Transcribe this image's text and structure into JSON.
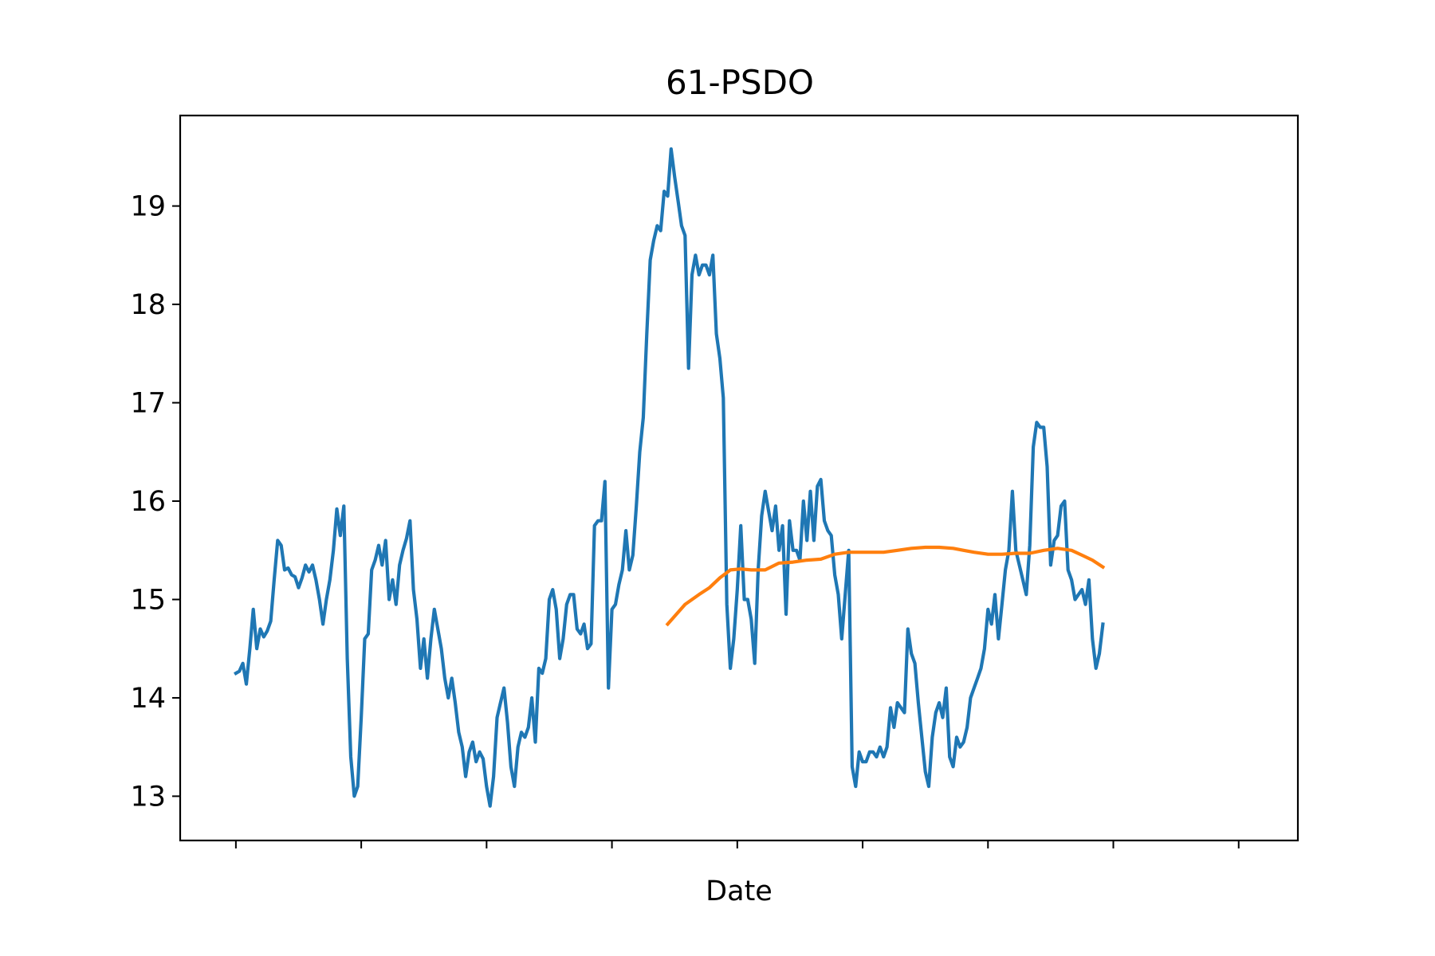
{
  "chart_data": {
    "type": "line",
    "title": "61-PSDO",
    "xlabel": "Date",
    "ylabel": "",
    "ylim": [
      12.55,
      19.92
    ],
    "xlim": [
      -16,
      305
    ],
    "yticks": [
      13,
      14,
      15,
      16,
      17,
      18,
      19
    ],
    "x_tick_count": 9,
    "x_tick_step": 36,
    "grid": false,
    "legend": "none",
    "series": [
      {
        "color": "#1f77b4",
        "anchors": [
          [
            0,
            14.25
          ],
          [
            1,
            14.27
          ],
          [
            2,
            14.35
          ],
          [
            3,
            14.14
          ],
          [
            4,
            14.5
          ],
          [
            5,
            14.9
          ],
          [
            6,
            14.5
          ],
          [
            7,
            14.7
          ],
          [
            8,
            14.62
          ],
          [
            9,
            14.68
          ],
          [
            10,
            14.78
          ],
          [
            11,
            15.2
          ],
          [
            12,
            15.6
          ],
          [
            13,
            15.55
          ],
          [
            14,
            15.3
          ],
          [
            15,
            15.32
          ],
          [
            16,
            15.25
          ],
          [
            17,
            15.23
          ],
          [
            18,
            15.12
          ],
          [
            19,
            15.22
          ],
          [
            20,
            15.35
          ],
          [
            21,
            15.28
          ],
          [
            22,
            15.35
          ],
          [
            23,
            15.2
          ],
          [
            24,
            15.0
          ],
          [
            25,
            14.75
          ],
          [
            26,
            15.0
          ],
          [
            27,
            15.2
          ],
          [
            28,
            15.5
          ],
          [
            29,
            15.92
          ],
          [
            30,
            15.65
          ],
          [
            31,
            15.95
          ],
          [
            32,
            14.4
          ],
          [
            33,
            13.4
          ],
          [
            34,
            13.0
          ],
          [
            35,
            13.1
          ],
          [
            36,
            13.8
          ],
          [
            37,
            14.6
          ],
          [
            38,
            14.65
          ],
          [
            39,
            15.3
          ],
          [
            40,
            15.4
          ],
          [
            41,
            15.55
          ],
          [
            42,
            15.35
          ],
          [
            43,
            15.6
          ],
          [
            44,
            15.0
          ],
          [
            45,
            15.2
          ],
          [
            46,
            14.95
          ],
          [
            47,
            15.35
          ],
          [
            48,
            15.5
          ],
          [
            49,
            15.62
          ],
          [
            50,
            15.8
          ],
          [
            51,
            15.1
          ],
          [
            52,
            14.8
          ],
          [
            53,
            14.3
          ],
          [
            54,
            14.6
          ],
          [
            55,
            14.2
          ],
          [
            56,
            14.6
          ],
          [
            57,
            14.9
          ],
          [
            58,
            14.7
          ],
          [
            59,
            14.5
          ],
          [
            60,
            14.2
          ],
          [
            61,
            14.0
          ],
          [
            62,
            14.2
          ],
          [
            63,
            13.95
          ],
          [
            64,
            13.65
          ],
          [
            65,
            13.5
          ],
          [
            66,
            13.2
          ],
          [
            67,
            13.45
          ],
          [
            68,
            13.55
          ],
          [
            69,
            13.35
          ],
          [
            70,
            13.45
          ],
          [
            71,
            13.38
          ],
          [
            72,
            13.1
          ],
          [
            73,
            12.9
          ],
          [
            74,
            13.2
          ],
          [
            75,
            13.8
          ],
          [
            76,
            13.95
          ],
          [
            77,
            14.1
          ],
          [
            78,
            13.75
          ],
          [
            79,
            13.3
          ],
          [
            80,
            13.1
          ],
          [
            81,
            13.5
          ],
          [
            82,
            13.65
          ],
          [
            83,
            13.6
          ],
          [
            84,
            13.7
          ],
          [
            85,
            14.0
          ],
          [
            86,
            13.55
          ],
          [
            87,
            14.3
          ],
          [
            88,
            14.25
          ],
          [
            89,
            14.4
          ],
          [
            90,
            15.0
          ],
          [
            91,
            15.1
          ],
          [
            92,
            14.9
          ],
          [
            93,
            14.4
          ],
          [
            94,
            14.6
          ],
          [
            95,
            14.95
          ],
          [
            96,
            15.05
          ],
          [
            97,
            15.05
          ],
          [
            98,
            14.7
          ],
          [
            99,
            14.65
          ],
          [
            100,
            14.75
          ],
          [
            101,
            14.5
          ],
          [
            102,
            14.55
          ],
          [
            103,
            15.75
          ],
          [
            104,
            15.8
          ],
          [
            105,
            15.8
          ],
          [
            106,
            16.2
          ],
          [
            107,
            14.1
          ],
          [
            108,
            14.9
          ],
          [
            109,
            14.95
          ],
          [
            110,
            15.15
          ],
          [
            111,
            15.3
          ],
          [
            112,
            15.7
          ],
          [
            113,
            15.3
          ],
          [
            114,
            15.45
          ],
          [
            115,
            15.95
          ],
          [
            116,
            16.5
          ],
          [
            117,
            16.85
          ],
          [
            118,
            17.7
          ],
          [
            119,
            18.45
          ],
          [
            120,
            18.65
          ],
          [
            121,
            18.8
          ],
          [
            122,
            18.75
          ],
          [
            123,
            19.15
          ],
          [
            124,
            19.1
          ],
          [
            125,
            19.58
          ],
          [
            126,
            19.3
          ],
          [
            127,
            19.05
          ],
          [
            128,
            18.8
          ],
          [
            129,
            18.7
          ],
          [
            130,
            17.35
          ],
          [
            131,
            18.3
          ],
          [
            132,
            18.5
          ],
          [
            133,
            18.3
          ],
          [
            134,
            18.4
          ],
          [
            135,
            18.4
          ],
          [
            136,
            18.3
          ],
          [
            137,
            18.5
          ],
          [
            138,
            17.7
          ],
          [
            139,
            17.45
          ],
          [
            140,
            17.05
          ],
          [
            141,
            14.95
          ],
          [
            142,
            14.3
          ],
          [
            143,
            14.6
          ],
          [
            144,
            15.1
          ],
          [
            145,
            15.75
          ],
          [
            146,
            15.0
          ],
          [
            147,
            15.0
          ],
          [
            148,
            14.8
          ],
          [
            149,
            14.35
          ],
          [
            150,
            15.3
          ],
          [
            151,
            15.85
          ],
          [
            152,
            16.1
          ],
          [
            153,
            15.9
          ],
          [
            154,
            15.7
          ],
          [
            155,
            15.95
          ],
          [
            156,
            15.5
          ],
          [
            157,
            15.75
          ],
          [
            158,
            14.85
          ],
          [
            159,
            15.8
          ],
          [
            160,
            15.5
          ],
          [
            161,
            15.5
          ],
          [
            162,
            15.4
          ],
          [
            163,
            16.0
          ],
          [
            164,
            15.6
          ],
          [
            165,
            16.1
          ],
          [
            166,
            15.6
          ],
          [
            167,
            16.15
          ],
          [
            168,
            16.22
          ],
          [
            169,
            15.8
          ],
          [
            170,
            15.7
          ],
          [
            171,
            15.65
          ],
          [
            172,
            15.25
          ],
          [
            173,
            15.05
          ],
          [
            174,
            14.6
          ],
          [
            175,
            15.05
          ],
          [
            176,
            15.5
          ],
          [
            177,
            13.3
          ],
          [
            178,
            13.1
          ],
          [
            179,
            13.45
          ],
          [
            180,
            13.35
          ],
          [
            181,
            13.35
          ],
          [
            182,
            13.45
          ],
          [
            183,
            13.45
          ],
          [
            184,
            13.4
          ],
          [
            185,
            13.5
          ],
          [
            186,
            13.4
          ],
          [
            187,
            13.5
          ],
          [
            188,
            13.9
          ],
          [
            189,
            13.7
          ],
          [
            190,
            13.95
          ],
          [
            191,
            13.9
          ],
          [
            192,
            13.85
          ],
          [
            193,
            14.7
          ],
          [
            194,
            14.45
          ],
          [
            195,
            14.35
          ],
          [
            196,
            13.95
          ],
          [
            197,
            13.6
          ],
          [
            198,
            13.25
          ],
          [
            199,
            13.1
          ],
          [
            200,
            13.6
          ],
          [
            201,
            13.85
          ],
          [
            202,
            13.95
          ],
          [
            203,
            13.8
          ],
          [
            204,
            14.1
          ],
          [
            205,
            13.4
          ],
          [
            206,
            13.3
          ],
          [
            207,
            13.6
          ],
          [
            208,
            13.5
          ],
          [
            209,
            13.55
          ],
          [
            210,
            13.7
          ],
          [
            211,
            14.0
          ],
          [
            212,
            14.1
          ],
          [
            213,
            14.2
          ],
          [
            214,
            14.3
          ],
          [
            215,
            14.5
          ],
          [
            216,
            14.9
          ],
          [
            217,
            14.75
          ],
          [
            218,
            15.05
          ],
          [
            219,
            14.6
          ],
          [
            220,
            14.95
          ],
          [
            221,
            15.3
          ],
          [
            222,
            15.5
          ],
          [
            223,
            16.1
          ],
          [
            224,
            15.5
          ],
          [
            225,
            15.35
          ],
          [
            226,
            15.2
          ],
          [
            227,
            15.05
          ],
          [
            228,
            15.55
          ],
          [
            229,
            16.55
          ],
          [
            230,
            16.8
          ],
          [
            231,
            16.75
          ],
          [
            232,
            16.75
          ],
          [
            233,
            16.35
          ],
          [
            234,
            15.35
          ],
          [
            235,
            15.6
          ],
          [
            236,
            15.65
          ],
          [
            237,
            15.95
          ],
          [
            238,
            16.0
          ],
          [
            239,
            15.3
          ],
          [
            240,
            15.2
          ],
          [
            241,
            15.0
          ],
          [
            242,
            15.05
          ],
          [
            243,
            15.1
          ],
          [
            244,
            14.95
          ],
          [
            245,
            15.2
          ],
          [
            246,
            14.6
          ],
          [
            247,
            14.3
          ],
          [
            248,
            14.45
          ],
          [
            249,
            14.75
          ]
        ]
      },
      {
        "color": "#ff7f0e",
        "anchors": [
          [
            124,
            14.75
          ],
          [
            129,
            14.95
          ],
          [
            133,
            15.05
          ],
          [
            136,
            15.12
          ],
          [
            139,
            15.22
          ],
          [
            142,
            15.3
          ],
          [
            145,
            15.31
          ],
          [
            148,
            15.3
          ],
          [
            152,
            15.3
          ],
          [
            156,
            15.37
          ],
          [
            160,
            15.38
          ],
          [
            164,
            15.4
          ],
          [
            168,
            15.41
          ],
          [
            172,
            15.46
          ],
          [
            176,
            15.48
          ],
          [
            179,
            15.48
          ],
          [
            182,
            15.48
          ],
          [
            186,
            15.48
          ],
          [
            190,
            15.5
          ],
          [
            194,
            15.52
          ],
          [
            198,
            15.53
          ],
          [
            202,
            15.53
          ],
          [
            206,
            15.52
          ],
          [
            209,
            15.5
          ],
          [
            212,
            15.48
          ],
          [
            216,
            15.46
          ],
          [
            220,
            15.46
          ],
          [
            224,
            15.47
          ],
          [
            228,
            15.47
          ],
          [
            232,
            15.5
          ],
          [
            236,
            15.52
          ],
          [
            240,
            15.5
          ],
          [
            243,
            15.45
          ],
          [
            246,
            15.4
          ],
          [
            249,
            15.33
          ]
        ]
      }
    ]
  }
}
